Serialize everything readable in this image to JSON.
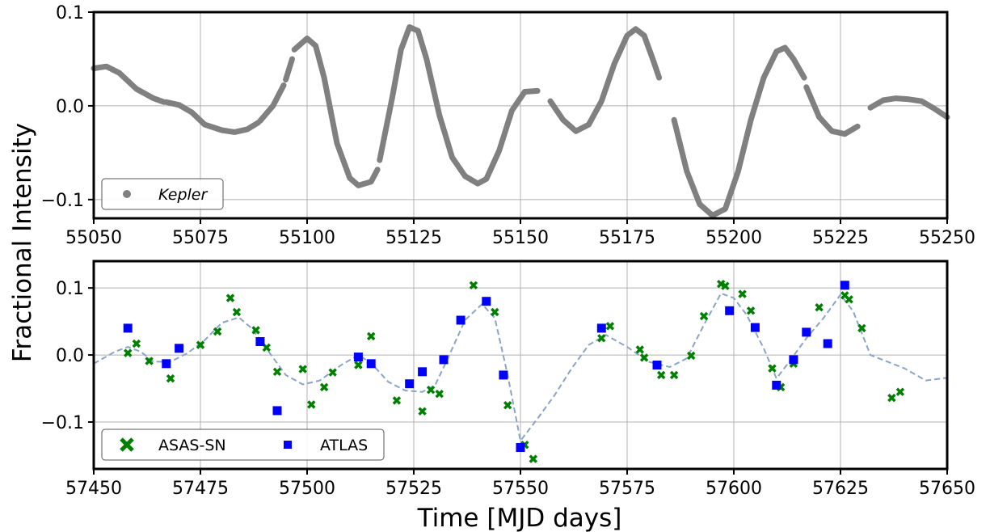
{
  "chart_data": [
    {
      "type": "scatter",
      "xlim": [
        55050,
        55250
      ],
      "ylim": [
        -0.12,
        0.1
      ],
      "xticks": [
        55050,
        55075,
        55100,
        55125,
        55150,
        55175,
        55200,
        55225,
        55250
      ],
      "yticks": [
        -0.1,
        0.0,
        0.1
      ],
      "xtick_labels": [
        "55050",
        "55075",
        "55100",
        "55125",
        "55150",
        "55175",
        "55200",
        "55225",
        "55250"
      ],
      "ytick_labels": [
        "−0.1",
        "0.0",
        "0.1"
      ],
      "grid": true,
      "legend": "lower-left",
      "series": [
        {
          "name": "Kepler",
          "color": "#808080",
          "marker": "dot",
          "segments": [
            [
              [
                55050,
                0.04
              ],
              [
                55053,
                0.042
              ],
              [
                55056,
                0.035
              ],
              [
                55060,
                0.018
              ],
              [
                55064,
                0.008
              ],
              [
                55066.5,
                0.004
              ]
            ],
            [
              [
                55067,
                0.004
              ],
              [
                55070,
                0.001
              ],
              [
                55073,
                -0.007
              ],
              [
                55076,
                -0.02
              ],
              [
                55080,
                -0.026
              ],
              [
                55083,
                -0.028
              ],
              [
                55086,
                -0.025
              ],
              [
                55088.5,
                -0.018
              ]
            ],
            [
              [
                55089,
                -0.016
              ],
              [
                55092,
                0.0
              ],
              [
                55094.5,
                0.022
              ]
            ],
            [
              [
                55095,
                0.028
              ],
              [
                55096.5,
                0.05
              ]
            ],
            [
              [
                55097,
                0.06
              ],
              [
                55100,
                0.072
              ],
              [
                55102,
                0.064
              ],
              [
                55104,
                0.03
              ],
              [
                55107,
                -0.04
              ],
              [
                55110,
                -0.077
              ],
              [
                55112,
                -0.085
              ],
              [
                55115,
                -0.081
              ],
              [
                55116.5,
                -0.068
              ]
            ],
            [
              [
                55117,
                -0.058
              ],
              [
                55120,
                0.01
              ],
              [
                55122,
                0.06
              ],
              [
                55124,
                0.084
              ],
              [
                55126,
                0.08
              ],
              [
                55128,
                0.05
              ],
              [
                55131,
                -0.01
              ],
              [
                55134,
                -0.055
              ],
              [
                55137,
                -0.075
              ],
              [
                55140,
                -0.083
              ],
              [
                55142,
                -0.078
              ],
              [
                55145,
                -0.048
              ],
              [
                55148,
                -0.005
              ],
              [
                55151,
                0.015
              ],
              [
                55154,
                0.016
              ]
            ],
            [
              [
                55157,
                0.005
              ],
              [
                55160,
                -0.015
              ],
              [
                55163,
                -0.027
              ],
              [
                55166,
                -0.02
              ],
              [
                55169,
                0.005
              ],
              [
                55172,
                0.045
              ],
              [
                55175,
                0.075
              ],
              [
                55177,
                0.082
              ],
              [
                55179,
                0.075
              ],
              [
                55181,
                0.05
              ],
              [
                55182.5,
                0.03
              ]
            ],
            [
              [
                55186,
                -0.015
              ],
              [
                55189,
                -0.07
              ],
              [
                55192,
                -0.105
              ],
              [
                55195,
                -0.117
              ],
              [
                55198,
                -0.11
              ],
              [
                55201,
                -0.07
              ],
              [
                55204,
                -0.015
              ],
              [
                55207,
                0.03
              ],
              [
                55210,
                0.058
              ],
              [
                55212,
                0.062
              ],
              [
                55214,
                0.05
              ],
              [
                55216.5,
                0.03
              ]
            ],
            [
              [
                55217,
                0.02
              ],
              [
                55220,
                -0.012
              ],
              [
                55223,
                -0.027
              ],
              [
                55226,
                -0.03
              ],
              [
                55229,
                -0.022
              ]
            ],
            [
              [
                55232,
                -0.002
              ],
              [
                55235,
                0.006
              ],
              [
                55238,
                0.008
              ],
              [
                55241,
                0.007
              ],
              [
                55244,
                0.005
              ],
              [
                55247,
                -0.003
              ],
              [
                55250,
                -0.012
              ]
            ]
          ]
        }
      ]
    },
    {
      "type": "scatter",
      "xlim": [
        57450,
        57650
      ],
      "ylim": [
        -0.17,
        0.14
      ],
      "xticks": [
        57450,
        57475,
        57500,
        57525,
        57550,
        57575,
        57600,
        57625,
        57650
      ],
      "yticks": [
        -0.1,
        0.0,
        0.1
      ],
      "xtick_labels": [
        "57450",
        "57475",
        "57500",
        "57525",
        "57550",
        "57575",
        "57600",
        "57625",
        "57650"
      ],
      "ytick_labels": [
        "−0.1",
        "0.0",
        "0.1"
      ],
      "grid": true,
      "legend": "lower-left",
      "series": [
        {
          "name": "ASAS-SN",
          "color": "#008000",
          "marker": "x",
          "points": [
            [
              57458,
              0.003
            ],
            [
              57460,
              0.017
            ],
            [
              57463,
              -0.009
            ],
            [
              57468,
              -0.035
            ],
            [
              57475,
              0.015
            ],
            [
              57479,
              0.035
            ],
            [
              57482,
              0.085
            ],
            [
              57483.5,
              0.064
            ],
            [
              57488,
              0.037
            ],
            [
              57489,
              0.02
            ],
            [
              57490.5,
              0.011
            ],
            [
              57493,
              -0.025
            ],
            [
              57499,
              -0.021
            ],
            [
              57501,
              -0.074
            ],
            [
              57504,
              -0.048
            ],
            [
              57506,
              -0.026
            ],
            [
              57512,
              -0.015
            ],
            [
              57515,
              0.028
            ],
            [
              57521,
              -0.068
            ],
            [
              57527,
              -0.084
            ],
            [
              57529,
              -0.052
            ],
            [
              57531,
              -0.058
            ],
            [
              57539,
              0.104
            ],
            [
              57544,
              0.064
            ],
            [
              57547,
              -0.075
            ],
            [
              57551,
              -0.134
            ],
            [
              57553,
              -0.155
            ],
            [
              57569,
              0.025
            ],
            [
              57571,
              0.043
            ],
            [
              57578,
              0.008
            ],
            [
              57579,
              -0.004
            ],
            [
              57583,
              -0.03
            ],
            [
              57586,
              -0.03
            ],
            [
              57590,
              -0.001
            ],
            [
              57593,
              0.058
            ],
            [
              57597,
              0.106
            ],
            [
              57598,
              0.103
            ],
            [
              57602,
              0.091
            ],
            [
              57604,
              0.066
            ],
            [
              57609,
              -0.02
            ],
            [
              57611,
              -0.048
            ],
            [
              57614,
              -0.013
            ],
            [
              57620,
              0.071
            ],
            [
              57626,
              0.089
            ],
            [
              57627,
              0.083
            ],
            [
              57630,
              0.04
            ],
            [
              57637,
              -0.064
            ],
            [
              57639,
              -0.055
            ]
          ]
        },
        {
          "name": "ATLAS",
          "color": "#0000ff",
          "marker": "square",
          "points": [
            [
              57458,
              0.04
            ],
            [
              57467,
              -0.013
            ],
            [
              57470,
              0.01
            ],
            [
              57489,
              0.02
            ],
            [
              57493,
              -0.083
            ],
            [
              57512,
              -0.003
            ],
            [
              57515,
              -0.013
            ],
            [
              57524,
              -0.043
            ],
            [
              57527,
              -0.025
            ],
            [
              57532,
              -0.007
            ],
            [
              57536,
              0.052
            ],
            [
              57542,
              0.08
            ],
            [
              57546,
              -0.03
            ],
            [
              57550,
              -0.138
            ],
            [
              57569,
              0.04
            ],
            [
              57582,
              -0.015
            ],
            [
              57599,
              0.066
            ],
            [
              57605,
              0.041
            ],
            [
              57610,
              -0.045
            ],
            [
              57614,
              -0.007
            ],
            [
              57617,
              0.034
            ],
            [
              57622,
              0.017
            ],
            [
              57626,
              0.104
            ]
          ]
        },
        {
          "name": "",
          "color": "#8aa4c8",
          "marker": "dashed-line",
          "points": [
            [
              57450,
              -0.013
            ],
            [
              57455,
              0.005
            ],
            [
              57458,
              0.012
            ],
            [
              57461,
              0.005
            ],
            [
              57464,
              -0.01
            ],
            [
              57468,
              -0.01
            ],
            [
              57472,
              0.003
            ],
            [
              57476,
              0.022
            ],
            [
              57480,
              0.048
            ],
            [
              57484,
              0.056
            ],
            [
              57487,
              0.04
            ],
            [
              57491,
              0.005
            ],
            [
              57495,
              -0.03
            ],
            [
              57499,
              -0.044
            ],
            [
              57503,
              -0.038
            ],
            [
              57508,
              -0.015
            ],
            [
              57512,
              0.0
            ],
            [
              57515,
              -0.012
            ],
            [
              57519,
              -0.04
            ],
            [
              57523,
              -0.053
            ],
            [
              57527,
              -0.055
            ],
            [
              57530,
              -0.045
            ],
            [
              57533,
              -0.005
            ],
            [
              57537,
              0.052
            ],
            [
              57541,
              0.076
            ],
            [
              57544,
              0.055
            ],
            [
              57547,
              -0.03
            ],
            [
              57550,
              -0.128
            ],
            [
              57554,
              -0.095
            ],
            [
              57558,
              -0.06
            ],
            [
              57562,
              -0.02
            ],
            [
              57566,
              0.015
            ],
            [
              57570,
              0.03
            ],
            [
              57575,
              0.012
            ],
            [
              57580,
              -0.01
            ],
            [
              57585,
              -0.018
            ],
            [
              57589,
              -0.005
            ],
            [
              57593,
              0.045
            ],
            [
              57597,
              0.092
            ],
            [
              57600,
              0.085
            ],
            [
              57603,
              0.06
            ],
            [
              57607,
              0.01
            ],
            [
              57610,
              -0.035
            ],
            [
              57613,
              -0.01
            ],
            [
              57617,
              0.025
            ],
            [
              57621,
              0.055
            ],
            [
              57625,
              0.09
            ],
            [
              57628,
              0.065
            ],
            [
              57632,
              0.0
            ],
            [
              57640,
              -0.02
            ],
            [
              57645,
              -0.038
            ],
            [
              57650,
              -0.034
            ]
          ]
        }
      ]
    }
  ],
  "ylabel": "Fractional Intensity",
  "xlabel": "Time [MJD days]"
}
